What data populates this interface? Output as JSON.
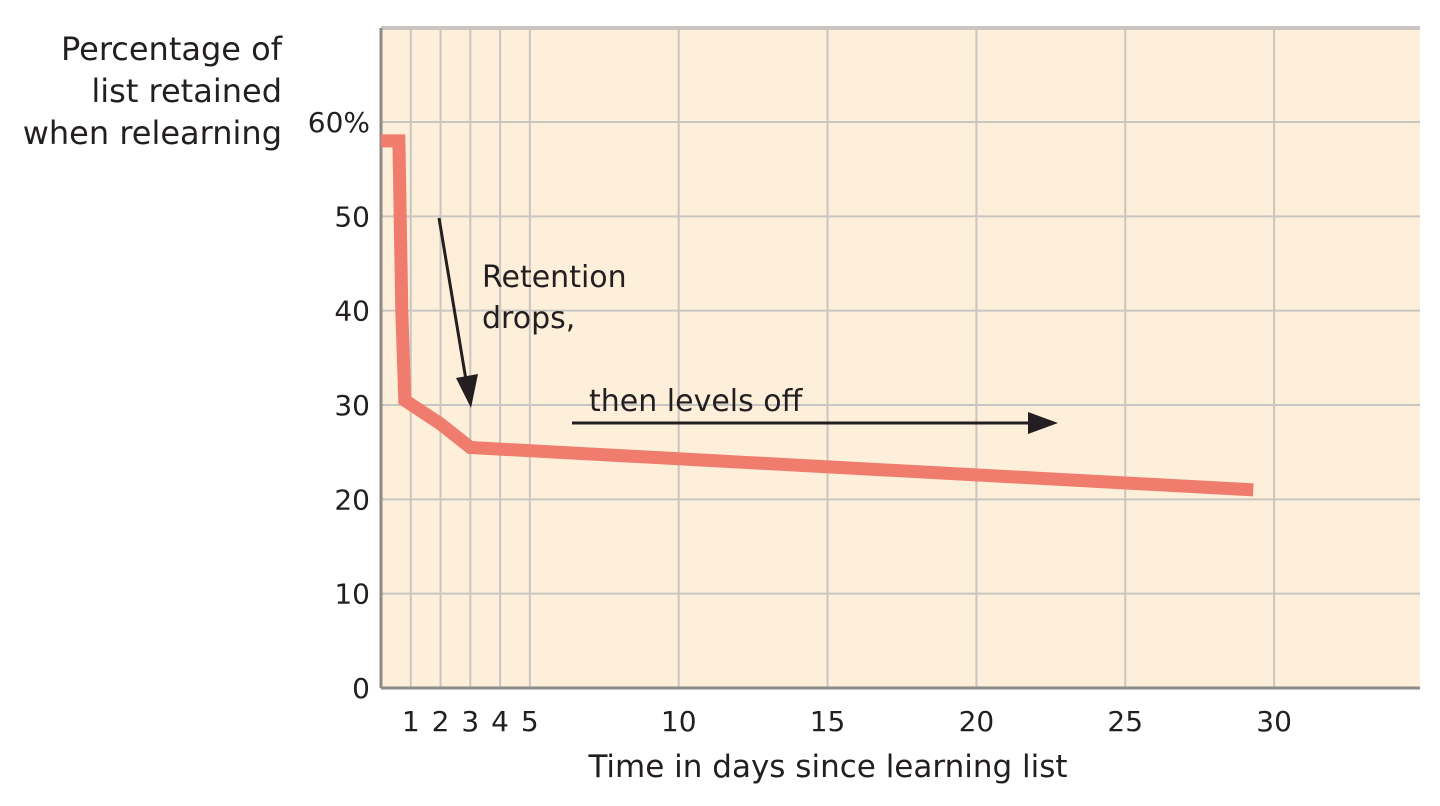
{
  "chart_data": {
    "type": "line",
    "title": "",
    "ylabel": [
      "Percentage of",
      "list retained",
      "when relearning"
    ],
    "xlabel": "Time in days since learning list",
    "xlim": [
      0,
      35
    ],
    "ylim": [
      0,
      60
    ],
    "x_ticks": [
      1,
      2,
      3,
      4,
      5,
      10,
      15,
      20,
      25,
      30
    ],
    "x_tick_labels": [
      "1",
      "2",
      "3",
      "4",
      "5",
      "10",
      "15",
      "20",
      "25",
      "30"
    ],
    "y_ticks": [
      0,
      10,
      20,
      30,
      40,
      50,
      60
    ],
    "y_tick_labels": [
      "0",
      "10",
      "20",
      "30",
      "40",
      "50",
      "60%"
    ],
    "grid": true,
    "series": [
      {
        "color": "#ef7c6d",
        "points": [
          {
            "x": 0,
            "y": 58
          },
          {
            "x": 0.6,
            "y": 58
          },
          {
            "x": 0.7,
            "y": 40
          },
          {
            "x": 0.8,
            "y": 30.5
          },
          {
            "x": 2,
            "y": 28
          },
          {
            "x": 3,
            "y": 25.5
          },
          {
            "x": 29.3,
            "y": 21
          }
        ]
      }
    ],
    "annotations": [
      {
        "id": "drop",
        "lines": [
          "Retention",
          "drops,"
        ]
      },
      {
        "id": "level",
        "lines": [
          "then levels off"
        ]
      }
    ],
    "colors": {
      "background": "#fdefd9",
      "grid": "#c9c5c1",
      "axis": "#8d8a88",
      "line": "#ef7c6d",
      "text": "#231f20"
    }
  }
}
